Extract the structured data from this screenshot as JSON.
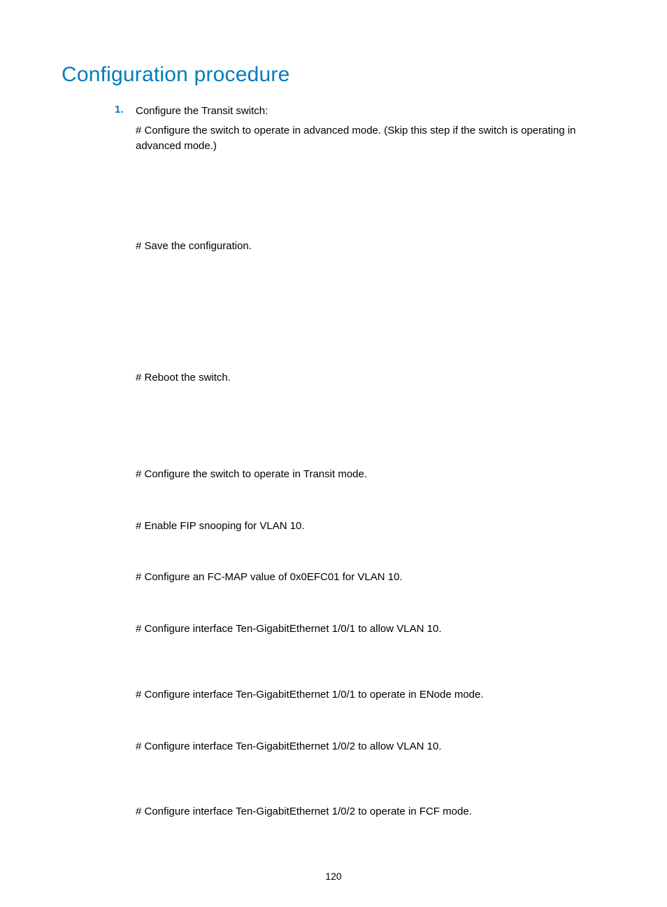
{
  "heading": "Configuration procedure",
  "list": {
    "number": "1.",
    "lead": "Configure the Transit switch:",
    "p1": "# Configure the switch to operate in advanced mode. (Skip this step if the switch is operating in advanced mode.)",
    "p2": "# Save the configuration.",
    "p3": "# Reboot the switch.",
    "p4": "# Configure the switch to operate in Transit mode.",
    "p5": "# Enable FIP snooping for VLAN 10.",
    "p6": "# Configure an FC-MAP value of 0x0EFC01 for VLAN 10.",
    "p7": "# Configure interface Ten-GigabitEthernet 1/0/1 to allow VLAN 10.",
    "p8": "# Configure interface Ten-GigabitEthernet 1/0/1 to operate in ENode mode.",
    "p9": "# Configure interface Ten-GigabitEthernet 1/0/2 to allow VLAN 10.",
    "p10": "# Configure interface Ten-GigabitEthernet 1/0/2 to operate in FCF mode."
  },
  "page_number": "120",
  "colors": {
    "accent": "#007dba",
    "text": "#000000",
    "background": "#ffffff"
  },
  "typography": {
    "heading_fontsize": 30,
    "body_fontsize": 15,
    "heading_font": "Futura / Century Gothic",
    "body_font": "Arial"
  }
}
